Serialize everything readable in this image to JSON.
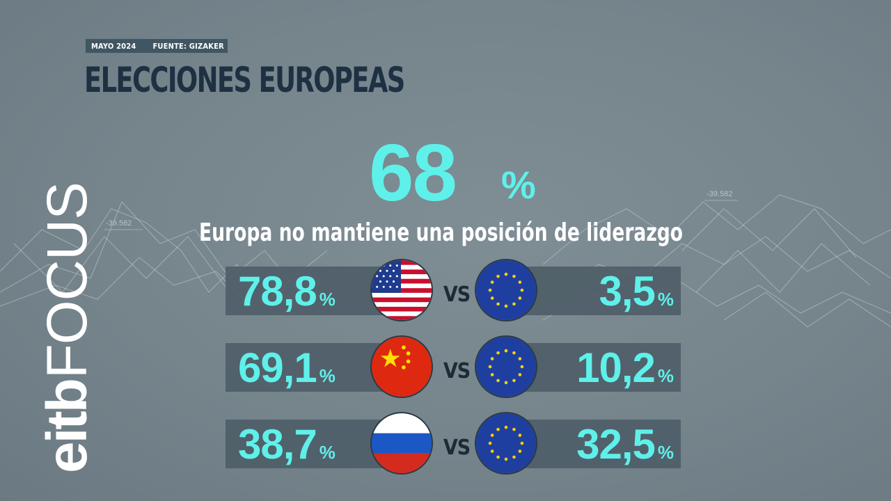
{
  "header": {
    "date": "MAYO 2024",
    "source": "FUENTE: GIZAKER",
    "title": "ELECCIONES EUROPEAS"
  },
  "brand": {
    "part1": "eitb",
    "part2": "FOCUS"
  },
  "background": {
    "values": [
      "-39.582",
      "-39.582"
    ]
  },
  "headline": {
    "value": "68",
    "unit": "%",
    "subtitle": "Europa no mantiene una posición de liderazgo"
  },
  "rows": [
    {
      "left_value": "78,8",
      "left_unit": "%",
      "left_flag": "usa-flag-icon",
      "vs": "VS",
      "right_value": "3,5",
      "right_unit": "%",
      "right_flag": "eu-flag-icon"
    },
    {
      "left_value": "69,1",
      "left_unit": "%",
      "left_flag": "china-flag-icon",
      "vs": "VS",
      "right_value": "10,2",
      "right_unit": "%",
      "right_flag": "eu-flag-icon"
    },
    {
      "left_value": "38,7",
      "left_unit": "%",
      "left_flag": "russia-flag-icon",
      "vs": "VS",
      "right_value": "32,5",
      "right_unit": "%",
      "right_flag": "eu-flag-icon"
    }
  ],
  "colors": {
    "accent": "#5ff0ea",
    "title": "#1e3142",
    "panel": "#4e5d67"
  }
}
